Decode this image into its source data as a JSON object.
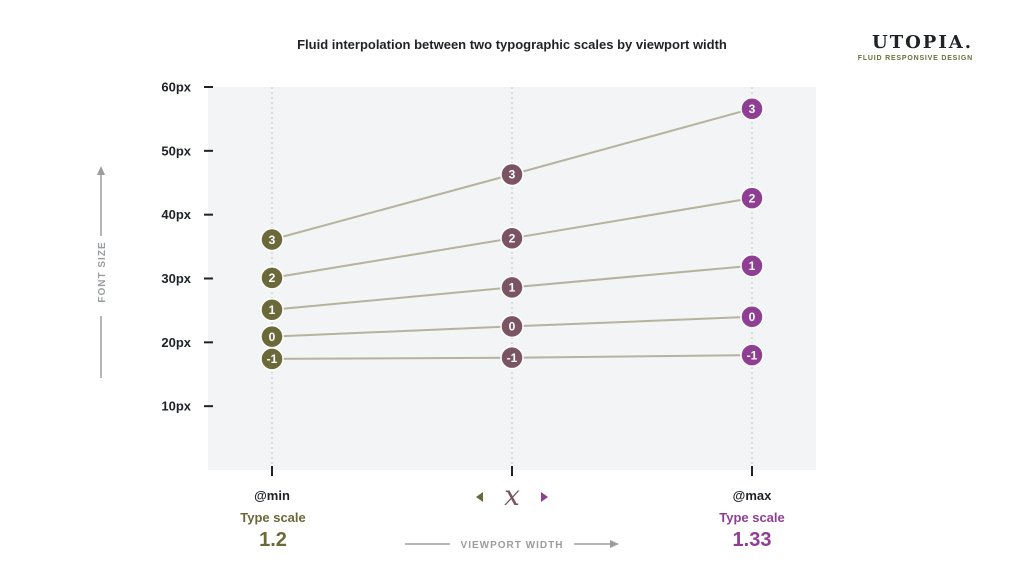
{
  "chart_data": {
    "type": "line",
    "title": "Fluid interpolation between two typographic scales by viewport width",
    "ylabel": "FONT SIZE",
    "xlabel": "VIEWPORT WIDTH",
    "y_tick_labels": [
      "60px",
      "50px",
      "40px",
      "30px",
      "20px",
      "10px"
    ],
    "y_ticks": [
      60,
      50,
      40,
      30,
      20,
      10
    ],
    "ylim": [
      0,
      60
    ],
    "categories": [
      "@min",
      "x",
      "@max"
    ],
    "x_mid_symbol": "x",
    "grid": false,
    "series": [
      {
        "name": "3",
        "values": [
          36.1,
          46.3,
          56.6
        ]
      },
      {
        "name": "2",
        "values": [
          30.1,
          36.3,
          42.6
        ]
      },
      {
        "name": "1",
        "values": [
          25.1,
          28.6,
          32.0
        ]
      },
      {
        "name": "0",
        "values": [
          20.9,
          22.5,
          24.0
        ]
      },
      {
        "name": "-1",
        "values": [
          17.4,
          17.6,
          18.0
        ]
      }
    ],
    "min_scale": {
      "label": "@min",
      "caption": "Type scale",
      "value": "1.2"
    },
    "max_scale": {
      "label": "@max",
      "caption": "Type scale",
      "value": "1.33"
    }
  },
  "colors": {
    "min": "#6b6939",
    "mid": "#7a5463",
    "max": "#8f3f93",
    "line": "#b5b29d",
    "plot_bg": "#f3f4f5",
    "axis": "#1f2226",
    "arrow": "#9a9d9f"
  },
  "brand": {
    "name": "UTOPIA.",
    "tagline": "FLUID RESPONSIVE DESIGN"
  }
}
